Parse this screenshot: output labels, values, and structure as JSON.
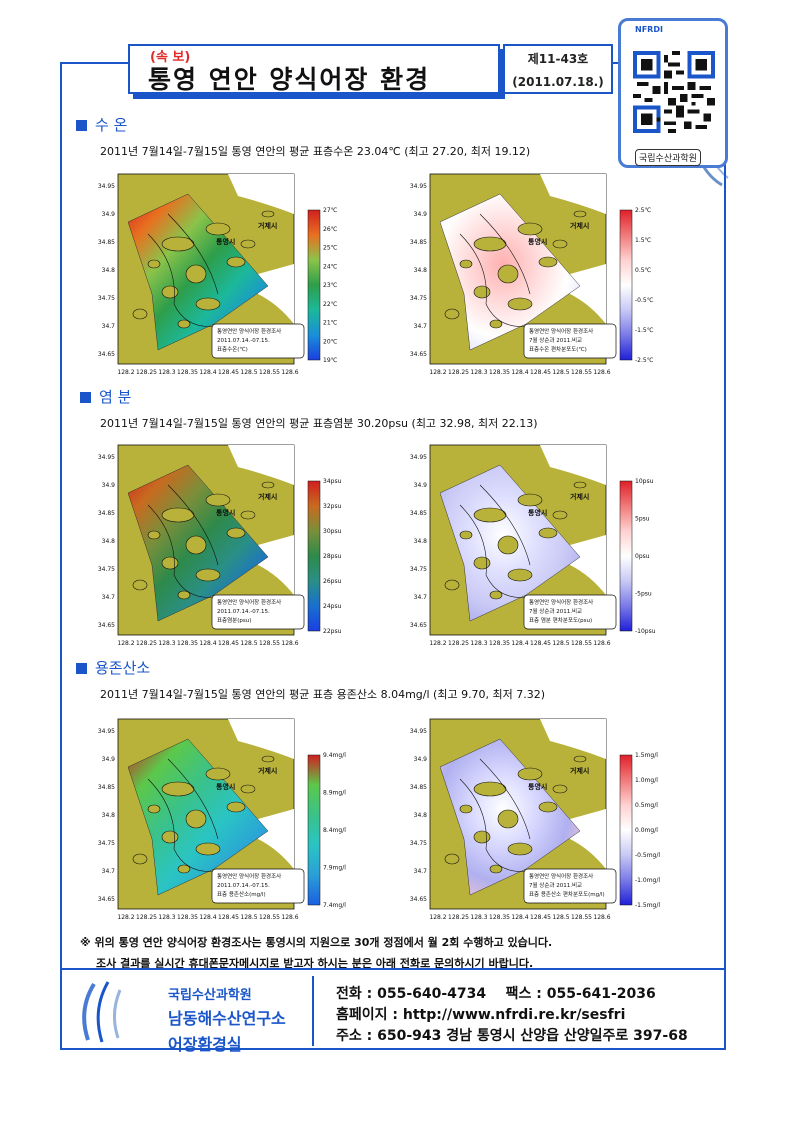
{
  "header": {
    "sokbo": "(속 보)",
    "title": "통영 연안 양식어장 환경",
    "issue_no": "제11-43호",
    "issue_date": "(2011.07.18.)",
    "qr_label": "국립수산과학원",
    "logo_text": "NFRDI"
  },
  "sections": [
    {
      "heading": "수 온",
      "summary": "2011년 7월14일-7월15일 통영 연안의 평균 표층수온 23.04℃ (최고 27.20, 최저 19.12)",
      "left_colorbar": [
        "27℃",
        "26℃",
        "25℃",
        "24℃",
        "23℃",
        "22℃",
        "21℃",
        "20℃",
        "19℃"
      ],
      "right_colorbar": [
        "2.5℃",
        "1.5℃",
        "0.5℃",
        "-0.5℃",
        "-1.5℃",
        "-2.5℃"
      ],
      "left_legend": [
        "통영연안 양식어장 환경조사",
        "2011.07.14.-07.15.",
        "표층수온(℃)"
      ],
      "right_legend": [
        "통영연안 양식어장 환경조사",
        "7월 상순과 2011.비교",
        "표층수온 편차분포도(℃)"
      ]
    },
    {
      "heading": "염 분",
      "summary": "2011년 7월14일-7월15일 통영 연안의 평균 표층염분 30.20psu (최고 32.98, 최저 22.13)",
      "left_colorbar": [
        "34psu",
        "32psu",
        "30psu",
        "28psu",
        "26psu",
        "24psu",
        "22psu"
      ],
      "right_colorbar": [
        "10psu",
        "5psu",
        "0psu",
        "-5psu",
        "-10psu"
      ],
      "left_legend": [
        "통영연안 양식어장 환경조사",
        "2011.07.14.-07.15.",
        "표층염분(psu)"
      ],
      "right_legend": [
        "통영연안 양식어장 환경조사",
        "7월 상순과 2011.비교",
        "표층 염분 편차분포도(psu)"
      ]
    },
    {
      "heading": "용존산소",
      "summary": "2011년 7월14일-7월15일 통영 연안의 평균 표층 용존산소 8.04mg/l (최고 9.70, 최저 7.32)",
      "left_colorbar": [
        "9.4mg/l",
        "8.9mg/l",
        "8.4mg/l",
        "7.9mg/l",
        "7.4mg/l"
      ],
      "right_colorbar": [
        "1.5mg/l",
        "1.0mg/l",
        "0.5mg/l",
        "0.0mg/l",
        "-0.5mg/l",
        "-1.0mg/l",
        "-1.5mg/l"
      ],
      "left_legend": [
        "통영연안 양식어장 환경조사",
        "2011.07.14.-07.15.",
        "표층 용존산소(mg/l)"
      ],
      "right_legend": [
        "통영연안 양식어장 환경조사",
        "7월 상순과 2011.비교",
        "표층 용존산소 편차분포도(mg/l)"
      ]
    }
  ],
  "map": {
    "lat_ticks": [
      "34.95",
      "34.9",
      "34.85",
      "34.8",
      "34.75",
      "34.7",
      "34.65"
    ],
    "lon_ticks": [
      "128.2",
      "128.25",
      "128.3",
      "128.35",
      "128.4",
      "128.45",
      "128.5",
      "128.55",
      "128.6"
    ],
    "label_geoje": "거제시",
    "label_tongyeong": "통영시"
  },
  "footnote": {
    "line1": "※ 위의 통영 연안 양식어장 환경조사는 통영시의 지원으로 30개 정점에서 월 2회 수행하고 있습니다.",
    "line2": "조사 결과를 실시간 휴대폰문자메시지로 받고자 하시는 분은 아래 전화로 문의하시기 바랍니다."
  },
  "footer": {
    "org1": "국립수산과학원",
    "org2": "남동해수산연구소",
    "org3": "어장환경실",
    "phone": "전화 : 055-640-4734    팩스 : 055-641-2036",
    "web": "홈페이지 : http://www.nfrdi.re.kr/sesfri",
    "address": "주소 : 650-943 경남 통영시 산양읍 산양일주로 397-68"
  },
  "colors": {
    "accent": "#1a56c9",
    "land": "#b9b23a",
    "red": "#e02a2a"
  }
}
